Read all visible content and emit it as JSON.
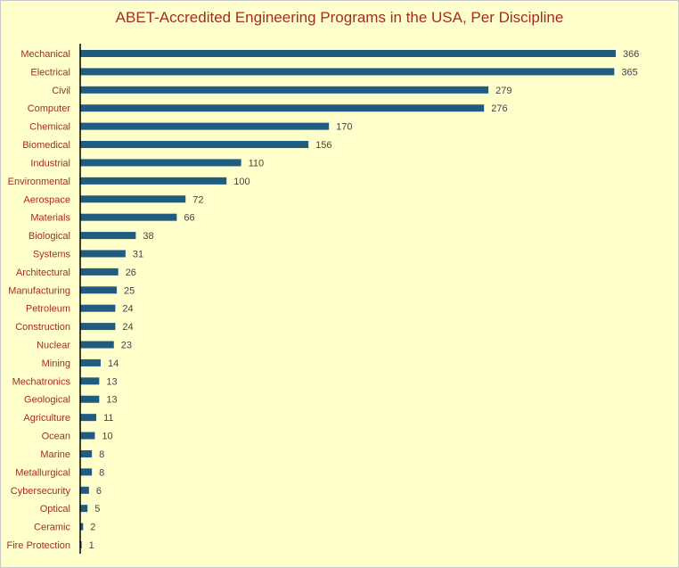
{
  "chart_data": {
    "type": "bar",
    "orientation": "horizontal",
    "title": "ABET-Accredited Engineering Programs in the USA, Per Discipline",
    "categories": [
      "Mechanical",
      "Electrical",
      "Civil",
      "Computer",
      "Chemical",
      "Biomedical",
      "Industrial",
      "Environmental",
      "Aerospace",
      "Materials",
      "Biological",
      "Systems",
      "Architectural",
      "Manufacturing",
      "Petroleum",
      "Construction",
      "Nuclear",
      "Mining",
      "Mechatronics",
      "Geological",
      "Agriculture",
      "Ocean",
      "Marine",
      "Metallurgical",
      "Cybersecurity",
      "Optical",
      "Ceramic",
      "Fire Protection"
    ],
    "values": [
      366,
      365,
      279,
      276,
      170,
      156,
      110,
      100,
      72,
      66,
      38,
      31,
      26,
      25,
      24,
      24,
      23,
      14,
      13,
      13,
      11,
      10,
      8,
      8,
      6,
      5,
      2,
      1
    ],
    "xlim": [
      0,
      366
    ],
    "grid": false,
    "data_labels": true,
    "colors": {
      "bar": "#1f5c7f",
      "labels": "#a52a2a",
      "background": "#ffffcc"
    }
  }
}
